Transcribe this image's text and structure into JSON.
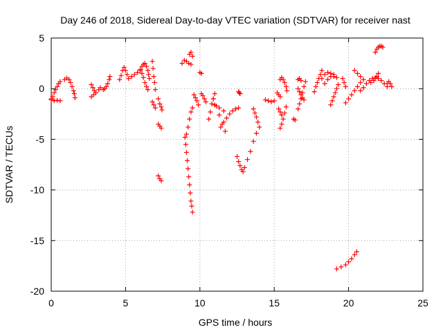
{
  "chart_data": {
    "type": "scatter",
    "title": "Day 246 of 2018, Sidereal Day-to-day VTEC variation (SDTVAR) for receiver nast",
    "xlabel": "GPS time / hours",
    "ylabel": "SDTVAR / TECUs",
    "xlim": [
      0,
      25
    ],
    "ylim": [
      -20,
      5
    ],
    "xticks": [
      0,
      5,
      10,
      15,
      20,
      25
    ],
    "yticks": [
      5,
      0,
      -5,
      -10,
      -15,
      -20
    ],
    "x_tick_labels": [
      "0",
      "5",
      "10",
      "15",
      "20",
      "25"
    ],
    "y_tick_labels": [
      "5",
      "0",
      "-5",
      "-10",
      "-15",
      "-20"
    ],
    "grid": true,
    "marker": "+",
    "series_color": "#ff0000",
    "tracks": [
      [
        [
          0.0,
          -1.0
        ],
        [
          0.1,
          -0.8
        ],
        [
          0.2,
          -0.4
        ],
        [
          0.3,
          -0.1
        ],
        [
          0.4,
          0.2
        ],
        [
          0.5,
          0.5
        ],
        [
          0.6,
          0.7
        ]
      ],
      [
        [
          0.0,
          -1.1
        ],
        [
          0.2,
          -1.2
        ],
        [
          0.4,
          -1.15
        ],
        [
          0.6,
          -1.2
        ]
      ],
      [
        [
          0.9,
          0.9
        ],
        [
          1.05,
          1.05
        ],
        [
          1.2,
          0.9
        ],
        [
          1.3,
          0.6
        ],
        [
          1.4,
          0.2
        ],
        [
          1.5,
          -0.2
        ],
        [
          1.55,
          -0.5
        ],
        [
          1.6,
          -0.9
        ]
      ],
      [
        [
          2.7,
          -0.8
        ],
        [
          2.85,
          -0.6
        ],
        [
          3.0,
          -0.4
        ],
        [
          3.2,
          -0.1
        ],
        [
          3.3,
          0.1
        ]
      ],
      [
        [
          2.7,
          0.4
        ],
        [
          2.8,
          0.1
        ],
        [
          2.9,
          -0.2
        ],
        [
          3.0,
          -0.4
        ]
      ],
      [
        [
          3.5,
          -0.1
        ],
        [
          3.6,
          0.0
        ],
        [
          3.7,
          0.2
        ],
        [
          3.8,
          0.5
        ],
        [
          3.9,
          0.9
        ],
        [
          3.95,
          1.2
        ]
      ],
      [
        [
          4.6,
          0.9
        ],
        [
          4.7,
          1.3
        ],
        [
          4.8,
          1.8
        ],
        [
          4.9,
          2.1
        ],
        [
          5.0,
          1.8
        ],
        [
          5.1,
          1.4
        ],
        [
          5.2,
          1.0
        ]
      ],
      [
        [
          5.4,
          1.2
        ],
        [
          5.6,
          1.4
        ],
        [
          5.8,
          1.6
        ],
        [
          6.0,
          1.8
        ],
        [
          6.1,
          2.2
        ],
        [
          6.2,
          2.4
        ],
        [
          6.3,
          2.5
        ]
      ],
      [
        [
          6.0,
          1.9
        ],
        [
          6.1,
          1.5
        ],
        [
          6.2,
          1.1
        ],
        [
          6.3,
          0.6
        ],
        [
          6.4,
          0.2
        ],
        [
          6.5,
          -0.1
        ]
      ],
      [
        [
          6.4,
          2.2
        ],
        [
          6.5,
          1.8
        ],
        [
          6.55,
          1.4
        ],
        [
          6.6,
          1.0
        ]
      ],
      [
        [
          6.8,
          2.7
        ],
        [
          6.85,
          2.0
        ],
        [
          6.9,
          1.2
        ],
        [
          6.95,
          0.6
        ],
        [
          7.0,
          -0.1
        ]
      ],
      [
        [
          6.8,
          -1.3
        ],
        [
          6.9,
          -1.6
        ],
        [
          7.0,
          -1.9
        ]
      ],
      [
        [
          7.2,
          -1.0
        ],
        [
          7.3,
          -1.5
        ],
        [
          7.4,
          -1.8
        ],
        [
          7.45,
          -2.1
        ]
      ],
      [
        [
          7.2,
          -3.5
        ],
        [
          7.3,
          -3.7
        ],
        [
          7.4,
          -3.9
        ]
      ],
      [
        [
          7.2,
          -8.6
        ],
        [
          7.3,
          -8.9
        ],
        [
          7.4,
          -9.1
        ]
      ],
      [
        [
          8.8,
          2.5
        ],
        [
          8.95,
          2.8
        ],
        [
          9.1,
          2.7
        ],
        [
          9.25,
          2.5
        ],
        [
          9.4,
          2.4
        ]
      ],
      [
        [
          9.3,
          3.4
        ],
        [
          9.4,
          3.6
        ],
        [
          9.5,
          3.2
        ]
      ],
      [
        [
          9.0,
          -4.8
        ],
        [
          9.05,
          -5.5
        ],
        [
          9.1,
          -6.3
        ],
        [
          9.15,
          -7.1
        ],
        [
          9.2,
          -7.9
        ],
        [
          9.25,
          -8.7
        ],
        [
          9.3,
          -9.5
        ],
        [
          9.35,
          -10.3
        ],
        [
          9.4,
          -11.1
        ],
        [
          9.45,
          -11.6
        ],
        [
          9.5,
          -12.2
        ]
      ],
      [
        [
          9.1,
          -4.5
        ],
        [
          9.2,
          -3.8
        ],
        [
          9.3,
          -3.0
        ],
        [
          9.4,
          -2.3
        ],
        [
          9.5,
          -1.9
        ]
      ],
      [
        [
          9.6,
          -0.6
        ],
        [
          9.7,
          -0.9
        ],
        [
          9.8,
          -1.2
        ],
        [
          9.9,
          -1.6
        ]
      ],
      [
        [
          10.0,
          1.6
        ],
        [
          10.1,
          1.5
        ]
      ],
      [
        [
          10.1,
          -0.5
        ],
        [
          10.2,
          -0.7
        ],
        [
          10.3,
          -1.0
        ],
        [
          10.4,
          -1.3
        ]
      ],
      [
        [
          10.6,
          -3.0
        ],
        [
          10.7,
          -2.3
        ],
        [
          10.8,
          -1.5
        ],
        [
          10.9,
          -1.0
        ],
        [
          11.0,
          -0.5
        ]
      ],
      [
        [
          10.9,
          -1.0
        ],
        [
          11.1,
          -1.7
        ],
        [
          11.3,
          -2.6
        ],
        [
          11.5,
          -3.5
        ],
        [
          11.7,
          -4.2
        ]
      ],
      [
        [
          11.0,
          -1.6
        ],
        [
          11.3,
          -1.9
        ],
        [
          11.6,
          -2.2
        ]
      ],
      [
        [
          11.4,
          -3.8
        ],
        [
          11.6,
          -3.3
        ],
        [
          11.8,
          -2.9
        ],
        [
          12.0,
          -2.5
        ],
        [
          12.2,
          -2.2
        ],
        [
          12.4,
          -2.0
        ],
        [
          12.6,
          -1.9
        ]
      ],
      [
        [
          12.6,
          -0.3
        ],
        [
          12.65,
          -0.4
        ],
        [
          12.7,
          -0.5
        ]
      ],
      [
        [
          12.5,
          -6.7
        ],
        [
          12.6,
          -7.2
        ],
        [
          12.7,
          -7.6
        ],
        [
          12.8,
          -8.0
        ],
        [
          12.9,
          -8.2
        ]
      ],
      [
        [
          13.0,
          -7.8
        ],
        [
          13.2,
          -7.0
        ],
        [
          13.4,
          -6.2
        ],
        [
          13.6,
          -5.2
        ],
        [
          13.8,
          -4.4
        ],
        [
          14.0,
          -3.8
        ]
      ],
      [
        [
          13.6,
          -2.0
        ],
        [
          13.7,
          -2.4
        ],
        [
          13.8,
          -2.8
        ],
        [
          13.9,
          -3.3
        ]
      ],
      [
        [
          14.4,
          -1.1
        ],
        [
          14.6,
          -1.2
        ],
        [
          14.8,
          -1.3
        ],
        [
          15.0,
          -1.2
        ]
      ],
      [
        [
          15.2,
          -0.4
        ],
        [
          15.3,
          -0.6
        ],
        [
          15.4,
          -0.8
        ]
      ],
      [
        [
          15.3,
          -2.0
        ],
        [
          15.4,
          -2.3
        ],
        [
          15.5,
          -2.6
        ]
      ],
      [
        [
          15.4,
          0.9
        ],
        [
          15.5,
          1.1
        ],
        [
          15.6,
          0.9
        ],
        [
          15.7,
          0.6
        ],
        [
          15.8,
          0.2
        ],
        [
          15.85,
          -0.2
        ]
      ],
      [
        [
          15.4,
          -3.9
        ],
        [
          15.5,
          -3.5
        ],
        [
          15.6,
          -3.0
        ],
        [
          15.7,
          -2.4
        ],
        [
          15.8,
          -1.8
        ]
      ],
      [
        [
          16.3,
          -3.0
        ],
        [
          16.4,
          -3.1
        ]
      ],
      [
        [
          16.6,
          0.9
        ],
        [
          16.7,
          1.0
        ],
        [
          16.8,
          0.8
        ]
      ],
      [
        [
          16.6,
          -2.0
        ],
        [
          16.7,
          -1.5
        ],
        [
          16.8,
          -1.0
        ],
        [
          16.9,
          -0.4
        ],
        [
          17.0,
          0.2
        ],
        [
          17.1,
          0.7
        ]
      ],
      [
        [
          16.6,
          0.0
        ],
        [
          16.7,
          -0.3
        ],
        [
          16.8,
          -0.6
        ],
        [
          16.9,
          -0.9
        ],
        [
          17.0,
          -1.1
        ]
      ],
      [
        [
          17.7,
          -0.3
        ],
        [
          17.8,
          0.2
        ],
        [
          17.9,
          0.6
        ],
        [
          18.0,
          1.0
        ],
        [
          18.1,
          1.4
        ],
        [
          18.2,
          1.8
        ]
      ],
      [
        [
          18.2,
          1.0
        ],
        [
          18.4,
          1.4
        ],
        [
          18.6,
          1.6
        ],
        [
          18.8,
          1.5
        ],
        [
          19.0,
          1.2
        ],
        [
          19.2,
          1.1
        ]
      ],
      [
        [
          18.4,
          0.5
        ],
        [
          18.6,
          0.9
        ],
        [
          18.8,
          1.2
        ],
        [
          19.0,
          1.4
        ]
      ],
      [
        [
          18.8,
          -1.6
        ],
        [
          18.9,
          -1.2
        ],
        [
          19.0,
          -0.8
        ],
        [
          19.1,
          -0.4
        ],
        [
          19.2,
          0.0
        ],
        [
          19.3,
          0.4
        ]
      ],
      [
        [
          19.6,
          1.0
        ],
        [
          19.7,
          0.6
        ],
        [
          19.8,
          0.2
        ]
      ],
      [
        [
          19.8,
          -1.4
        ],
        [
          20.0,
          -1.0
        ],
        [
          20.2,
          -0.6
        ],
        [
          20.4,
          -0.2
        ],
        [
          20.6,
          0.2
        ],
        [
          20.8,
          0.6
        ]
      ],
      [
        [
          20.4,
          1.8
        ],
        [
          20.6,
          1.5
        ],
        [
          20.8,
          1.2
        ],
        [
          21.0,
          0.9
        ]
      ],
      [
        [
          20.8,
          -0.2
        ],
        [
          21.0,
          0.1
        ],
        [
          21.2,
          0.5
        ],
        [
          21.4,
          0.8
        ],
        [
          21.6,
          1.0
        ],
        [
          21.8,
          1.1
        ]
      ],
      [
        [
          21.5,
          0.6
        ],
        [
          21.7,
          0.8
        ],
        [
          21.9,
          1.2
        ],
        [
          22.0,
          1.5
        ]
      ],
      [
        [
          22.0,
          1.0
        ],
        [
          22.2,
          0.8
        ],
        [
          22.4,
          0.5
        ],
        [
          22.6,
          0.2
        ]
      ],
      [
        [
          21.8,
          3.6
        ],
        [
          21.9,
          3.9
        ],
        [
          22.0,
          4.1
        ],
        [
          22.1,
          4.2
        ],
        [
          22.2,
          4.2
        ],
        [
          22.3,
          4.1
        ]
      ],
      [
        [
          22.6,
          0.5
        ],
        [
          22.7,
          0.7
        ],
        [
          22.8,
          0.5
        ],
        [
          22.9,
          0.2
        ]
      ],
      [
        [
          19.2,
          -17.8
        ],
        [
          19.5,
          -17.6
        ],
        [
          19.8,
          -17.4
        ],
        [
          20.0,
          -17.1
        ],
        [
          20.2,
          -16.8
        ],
        [
          20.4,
          -16.4
        ],
        [
          20.55,
          -16.1
        ]
      ]
    ]
  }
}
